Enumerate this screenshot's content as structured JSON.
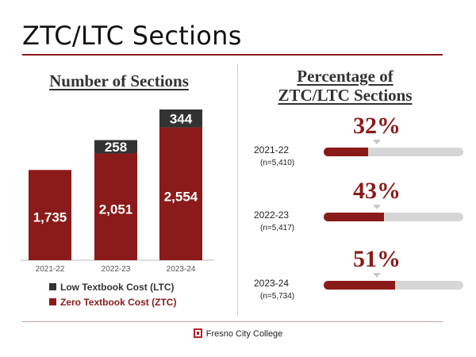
{
  "page": {
    "title": "ZTC/LTC Sections",
    "left_heading": "Number of Sections",
    "right_heading_line1": "Percentage of",
    "right_heading_line2": "ZTC/LTC Sections",
    "footer_text": "Fresno City College"
  },
  "colors": {
    "ztc": "#8b1a1a",
    "ltc": "#333333",
    "track": "#d6d6d6"
  },
  "chart_data": [
    {
      "type": "bar",
      "stacked": true,
      "title": "Number of Sections",
      "categories": [
        "2021-22",
        "2022-23",
        "2023-24"
      ],
      "series": [
        {
          "name": "Zero Textbook Cost (ZTC)",
          "values": [
            1735,
            2051,
            2554
          ],
          "labels": [
            "1,735",
            "2,051",
            "2,554"
          ]
        },
        {
          "name": "Low Textbook Cost (LTC)",
          "values": [
            0,
            258,
            344
          ],
          "labels": [
            "",
            "258",
            "344"
          ]
        }
      ],
      "legend": [
        "Low Textbook Cost (LTC)",
        "Zero Textbook Cost (ZTC)"
      ]
    },
    {
      "type": "bar",
      "orientation": "horizontal",
      "title": "Percentage of ZTC/LTC Sections",
      "categories": [
        "2021-22",
        "2022-23",
        "2023-24"
      ],
      "n_labels": [
        "(n=5,410)",
        "(n=5,417)",
        "(n=5,734)"
      ],
      "values": [
        32,
        43,
        51
      ],
      "value_labels": [
        "32%",
        "43%",
        "51%"
      ],
      "xlim": [
        0,
        100
      ]
    }
  ]
}
